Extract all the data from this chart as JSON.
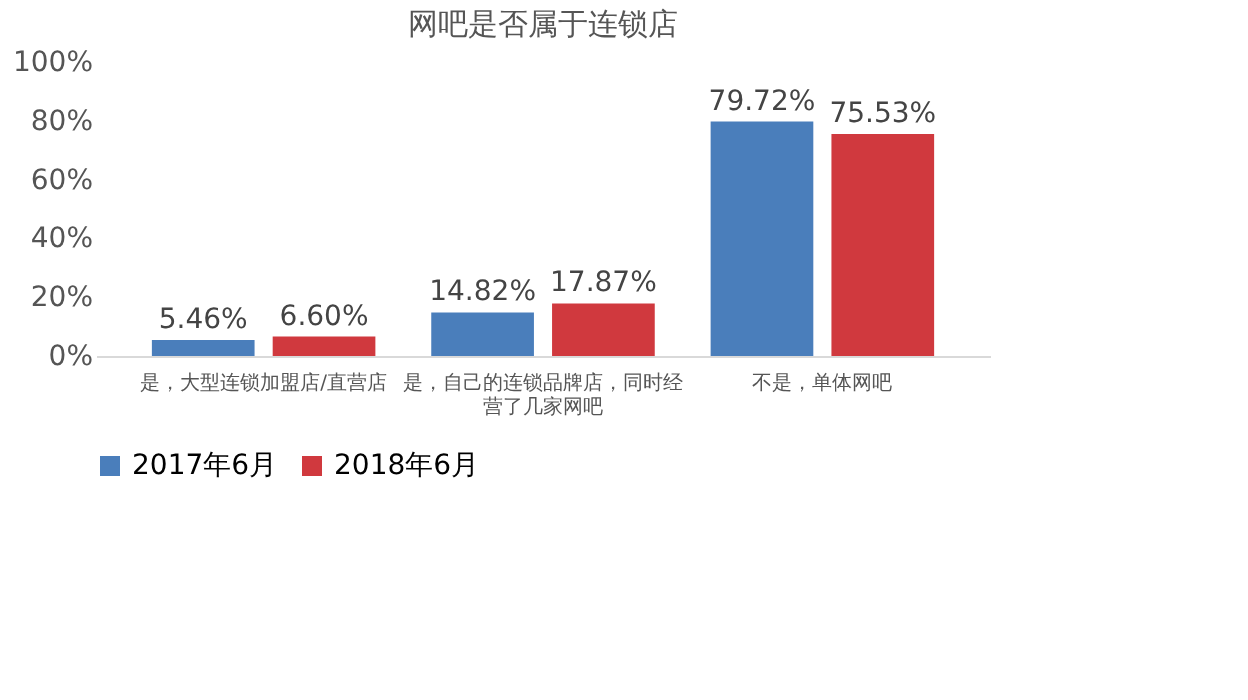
{
  "chart_data": {
    "type": "bar",
    "title": "网吧是否属于连锁店",
    "categories": [
      "是，大型连锁加盟店/直营店",
      "是，自己的连锁品牌店，同时经营了几家网吧",
      "不是，单体网吧"
    ],
    "series": [
      {
        "name": "2017年6月",
        "color": "#4a7ebb",
        "values": [
          5.46,
          14.82,
          79.72
        ],
        "value_labels": [
          "5.46%",
          "14.82%",
          "79.72%"
        ]
      },
      {
        "name": "2018年6月",
        "color": "#d0393e",
        "values": [
          6.6,
          17.87,
          75.53
        ],
        "value_labels": [
          "6.60%",
          "17.87%",
          "75.53%"
        ]
      }
    ],
    "ylim": [
      0,
      100
    ],
    "yticks": [
      {
        "value": 0,
        "label": "0%"
      },
      {
        "value": 20,
        "label": "20%"
      },
      {
        "value": 40,
        "label": "40%"
      },
      {
        "value": 60,
        "label": "60%"
      },
      {
        "value": 80,
        "label": "80%"
      },
      {
        "value": 100,
        "label": "100%"
      }
    ],
    "grid": false,
    "legend": "bottom"
  }
}
